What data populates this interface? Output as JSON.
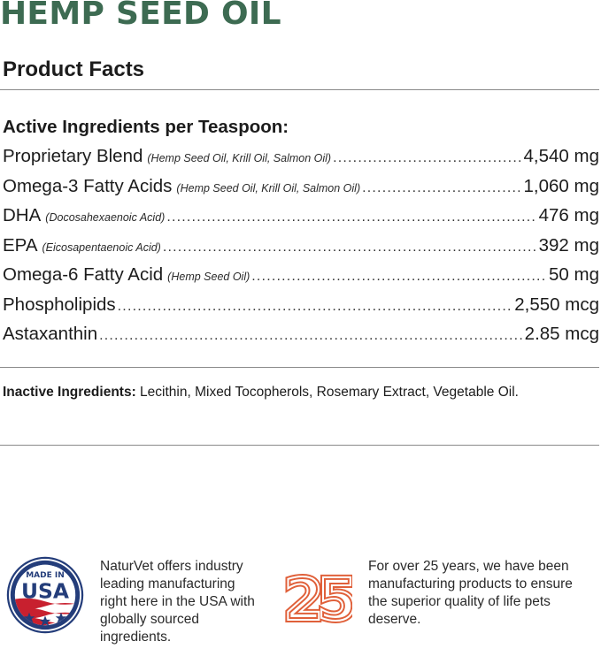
{
  "title": "HEMP SEED OIL",
  "subtitle": "Product Facts",
  "active": {
    "heading": "Active Ingredients per Teaspoon:",
    "items": [
      {
        "name": "Proprietary Blend",
        "note": "(Hemp Seed Oil, Krill Oil, Salmon Oil)",
        "amount": "4,540 mg"
      },
      {
        "name": "Omega-3 Fatty Acids",
        "note": "(Hemp Seed Oil, Krill Oil, Salmon Oil)",
        "amount": "1,060 mg"
      },
      {
        "name": "DHA",
        "note": "(Docosahexaenoic Acid)",
        "amount": "476 mg"
      },
      {
        "name": "EPA",
        "note": "(Eicosapentaenoic Acid)",
        "amount": "392 mg"
      },
      {
        "name": "Omega-6 Fatty Acid",
        "note": "(Hemp Seed Oil)",
        "amount": "50 mg"
      },
      {
        "name": "Phospholipids",
        "note": "",
        "amount": "2,550 mcg"
      },
      {
        "name": "Astaxanthin",
        "note": "",
        "amount": "2.85 mcg"
      }
    ]
  },
  "inactive": {
    "label": "Inactive Ingredients:",
    "text": "Lecithin, Mixed Tocopherols, Rosemary Extract, Vegetable Oil."
  },
  "badges": {
    "usa": {
      "line1": "MADE IN",
      "line2": "USA",
      "icon": "made-in-usa-badge"
    },
    "years": {
      "number": "25",
      "icon": "25-years-badge"
    }
  },
  "blurbs": {
    "usa": "NaturVet offers industry leading manufacturing right here in the USA with globally sourced ingredients.",
    "years": "For over 25 years, we have been manufacturing products to ensure the superior quality of life pets deserve."
  },
  "colors": {
    "brand_green": "#3d6b52",
    "badge_blue": "#243d7a",
    "badge_red": "#c8202f",
    "badge_orange": "#e0603a"
  }
}
